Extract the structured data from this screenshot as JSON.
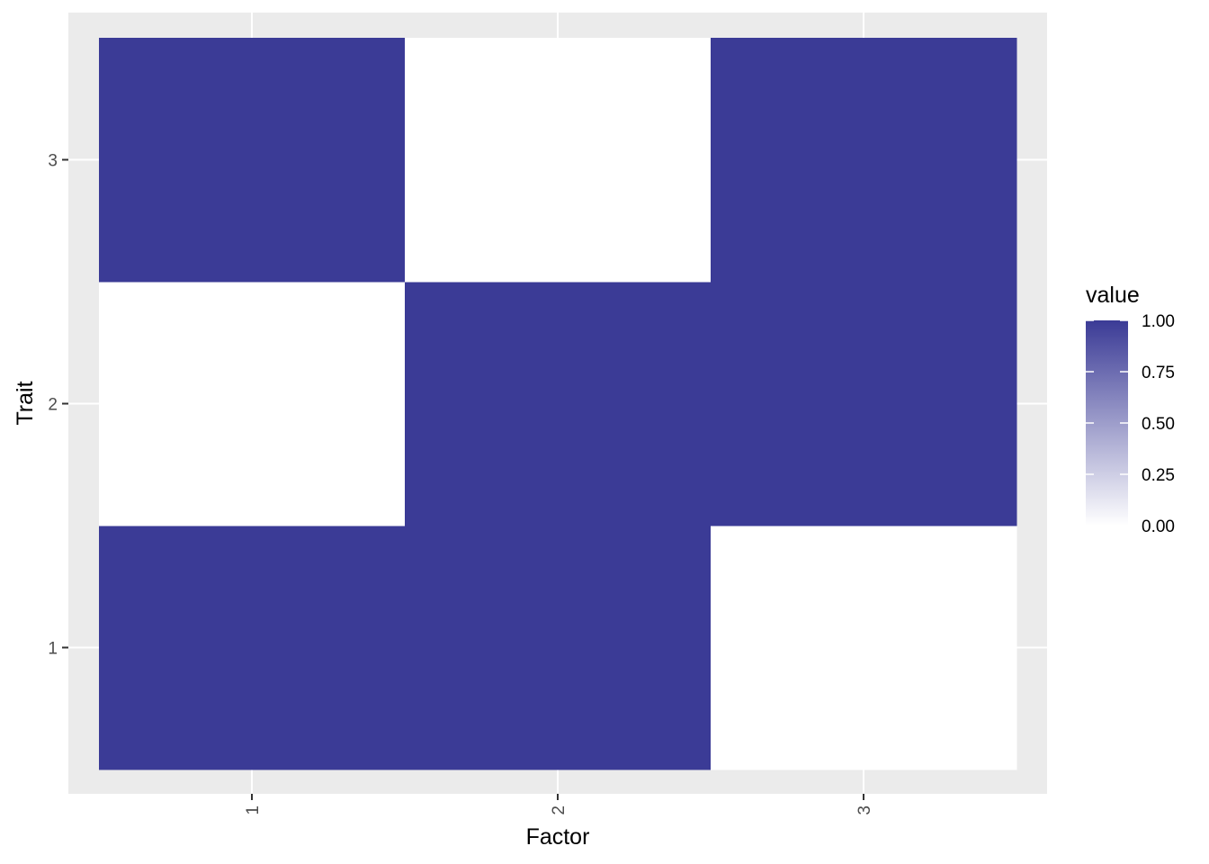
{
  "chart_data": {
    "type": "heatmap",
    "xlabel": "Factor",
    "ylabel": "Trait",
    "x_categories": [
      "1",
      "2",
      "3"
    ],
    "y_categories": [
      "1",
      "2",
      "3"
    ],
    "cells": [
      {
        "x": "1",
        "y": "1",
        "value": 1
      },
      {
        "x": "2",
        "y": "1",
        "value": 1
      },
      {
        "x": "3",
        "y": "1",
        "value": 0
      },
      {
        "x": "1",
        "y": "2",
        "value": 0
      },
      {
        "x": "2",
        "y": "2",
        "value": 1
      },
      {
        "x": "3",
        "y": "2",
        "value": 1
      },
      {
        "x": "1",
        "y": "3",
        "value": 1
      },
      {
        "x": "2",
        "y": "3",
        "value": 0
      },
      {
        "x": "3",
        "y": "3",
        "value": 1
      }
    ],
    "legend": {
      "title": "value",
      "placement": "right",
      "ticks": [
        "0.00",
        "0.25",
        "0.50",
        "0.75",
        "1.00"
      ],
      "range": [
        0,
        1
      ]
    },
    "colors": {
      "low": "#ffffff",
      "high": "#3b3b96",
      "panel_background": "#ebebeb",
      "grid": "#ffffff",
      "tick_mark": "#333333"
    },
    "x_tick_rotation": "vertical",
    "grid": true
  }
}
